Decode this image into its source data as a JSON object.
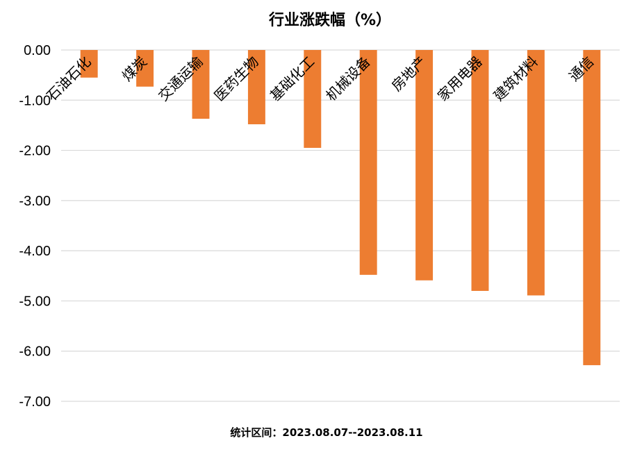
{
  "chart_data": {
    "type": "bar",
    "title": "行业涨跌幅（%）",
    "footnote": "统计区间：2023.08.07--2023.08.11",
    "categories": [
      "石油石化",
      "煤炭",
      "交通运输",
      "医药生物",
      "基础化工",
      "机械设备",
      "房地产",
      "家用电器",
      "建筑材料",
      "通信"
    ],
    "values": [
      -0.55,
      -0.73,
      -1.37,
      -1.48,
      -1.95,
      -4.48,
      -4.59,
      -4.8,
      -4.89,
      -6.28
    ],
    "ylim": [
      -7,
      0
    ],
    "yticks": [
      "0.00",
      "-1.00",
      "-2.00",
      "-3.00",
      "-4.00",
      "-5.00",
      "-6.00",
      "-7.00"
    ],
    "bar_color": "#ED7D31",
    "grid": true,
    "legend": "none"
  }
}
